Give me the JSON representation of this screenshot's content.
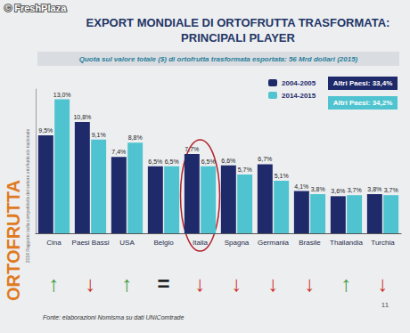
{
  "chart_data": {
    "type": "bar",
    "title": "EXPORT MONDIALE DI ORTOFRUTTA TRASFORMATA: PRINCIPALI PLAYER",
    "subtitle": "Quota sul valore totale ($) di ortofrutta trasformata esportata: 56 Mrd dollari (2015)",
    "categories": [
      "Cina",
      "Paesi Bassi",
      "USA",
      "Belgio",
      "Italia",
      "Spagna",
      "Germania",
      "Brasile",
      "Thailandia",
      "Turchia"
    ],
    "series": [
      {
        "name": "2004-2005",
        "color": "#1f2a6b",
        "values": [
          9.5,
          10.8,
          7.4,
          6.5,
          7.7,
          6.6,
          6.7,
          4.1,
          3.6,
          3.8
        ],
        "value_labels": [
          "9,5%",
          "10,8%",
          "7,4%",
          "6,5%",
          "7,7%",
          "6,6%",
          "6,7%",
          "4,1%",
          "3,6%",
          "3,8%"
        ]
      },
      {
        "name": "2014-2015",
        "color": "#4fc4d0",
        "values": [
          13.0,
          9.1,
          8.8,
          6.5,
          6.5,
          5.7,
          5.1,
          3.8,
          3.7,
          3.7
        ],
        "value_labels": [
          "13,0%",
          "9,1%",
          "8,8%",
          "6,5%",
          "6,5%",
          "5,7%",
          "5,1%",
          "3,8%",
          "3,7%",
          "3,7%"
        ]
      }
    ],
    "ylim": [
      0,
      14
    ],
    "tick_labels": "x",
    "legend": "top-right",
    "data_labels": true,
    "others": [
      {
        "label": "Altri Paesi: 33,4%",
        "series": "2004-2005"
      },
      {
        "label": "Altri Paesi: 34,2%",
        "series": "2014-2015"
      }
    ],
    "circled": "Italia",
    "trend": [
      "↑",
      "↓",
      "↑",
      "=",
      "↓",
      "↓",
      "↓",
      "↓",
      "↑",
      "↓"
    ],
    "source": "Fonte: elaborazioni Nomisma su dati UNIComtrade",
    "page": "11",
    "side_label": "ORTOFRUTTA",
    "side_note": "2016 Rapporto sulla competitività del settore ortofrutticolo nazionale",
    "watermark": "© FreshPlaza"
  }
}
